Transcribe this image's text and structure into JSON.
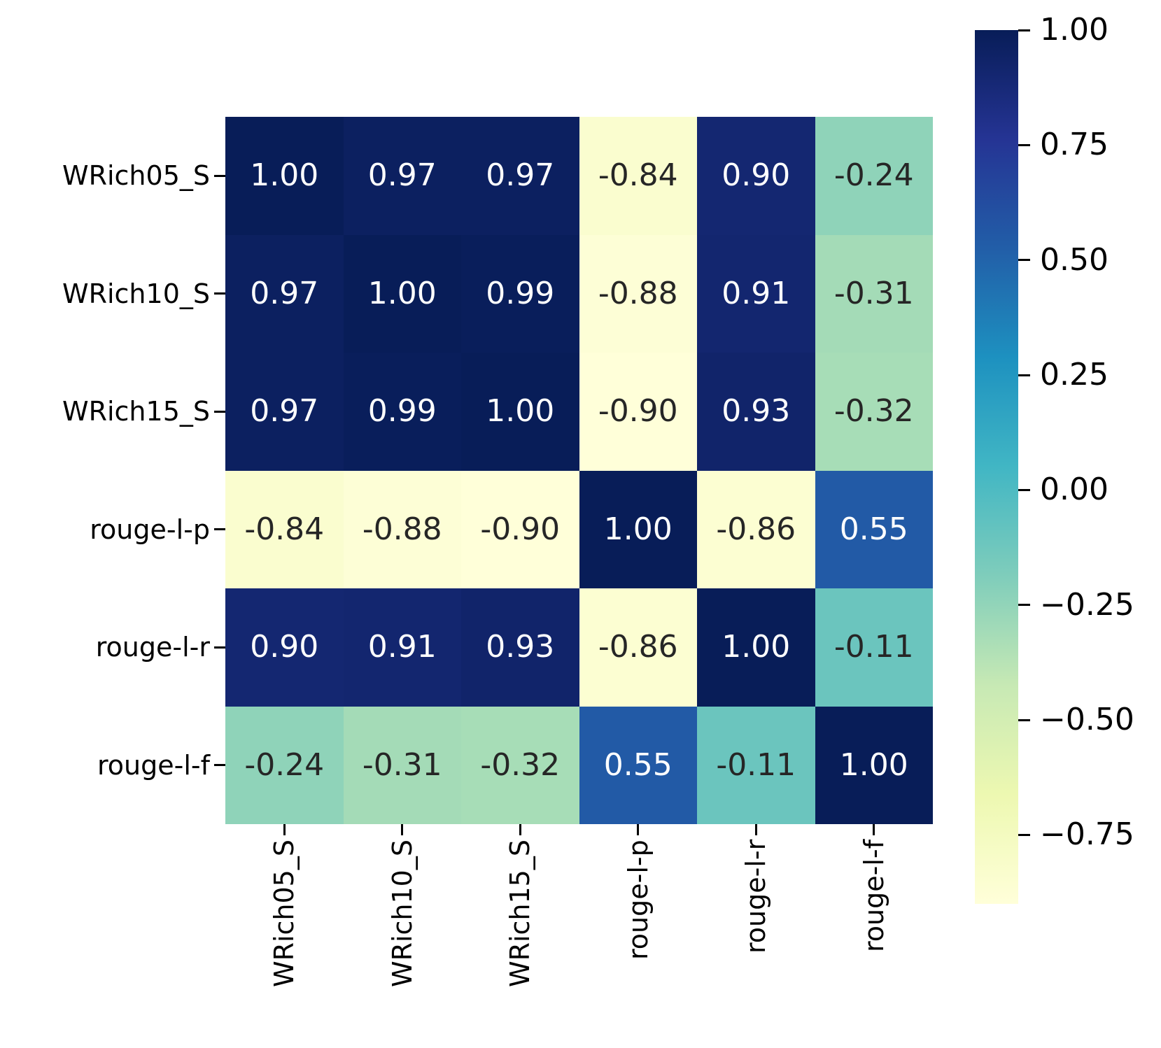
{
  "figure": {
    "background_color": "#ffffff"
  },
  "chart_data": {
    "type": "heatmap",
    "title": "",
    "x_labels": [
      "WRich05_S",
      "WRich10_S",
      "WRich15_S",
      "rouge-l-p",
      "rouge-l-r",
      "rouge-l-f"
    ],
    "y_labels": [
      "WRich05_S",
      "WRich10_S",
      "WRich15_S",
      "rouge-l-p",
      "rouge-l-r",
      "rouge-l-f"
    ],
    "matrix": [
      [
        1.0,
        0.97,
        0.97,
        -0.84,
        0.9,
        -0.24
      ],
      [
        0.97,
        1.0,
        0.99,
        -0.88,
        0.91,
        -0.31
      ],
      [
        0.97,
        0.99,
        1.0,
        -0.9,
        0.93,
        -0.32
      ],
      [
        -0.84,
        -0.88,
        -0.9,
        1.0,
        -0.86,
        0.55
      ],
      [
        0.9,
        0.91,
        0.93,
        -0.86,
        1.0,
        -0.11
      ],
      [
        -0.24,
        -0.31,
        -0.32,
        0.55,
        -0.11,
        1.0
      ]
    ],
    "cell_value_decimals": 2,
    "vmin": -0.9,
    "vmax": 1.0,
    "colormap_name": "YlGnBu",
    "colormap_stops": [
      "#ffffd9",
      "#edf8b1",
      "#c7e9b4",
      "#7fcdbb",
      "#41b6c4",
      "#1d91c0",
      "#225ea8",
      "#253494",
      "#081d58"
    ],
    "colorbar": {
      "position": "right",
      "tick_labels": [
        "1.00",
        "0.75",
        "0.50",
        "0.25",
        "0.00",
        "−0.25",
        "−0.50",
        "−0.75"
      ],
      "tick_values": [
        1.0,
        0.75,
        0.5,
        0.25,
        0.0,
        -0.25,
        -0.5,
        -0.75
      ]
    },
    "annotation_colors": {
      "light": "#ffffff",
      "dark": "#262626"
    },
    "axis_label_color": "#000000",
    "grid": false,
    "legend": false
  }
}
